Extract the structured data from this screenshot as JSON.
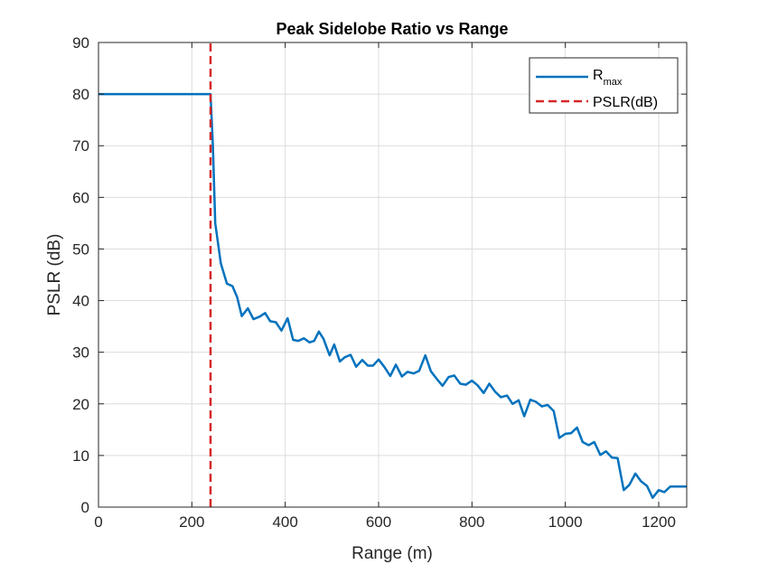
{
  "chart_data": {
    "type": "line",
    "title": "Peak Sidelobe Ratio vs Range",
    "xlabel": "Range (m)",
    "ylabel": "PSLR (dB)",
    "xlim": [
      0,
      1260
    ],
    "ylim": [
      0,
      90
    ],
    "xticks": [
      0,
      200,
      400,
      600,
      800,
      1000,
      1200
    ],
    "yticks": [
      0,
      10,
      20,
      30,
      40,
      50,
      60,
      70,
      80,
      90
    ],
    "grid": true,
    "legend_position": "top-right",
    "series": [
      {
        "name": "R",
        "name_subscript": "max",
        "color": "#0072BD",
        "style": "solid",
        "x": [
          0,
          240,
          245,
          250,
          262,
          275,
          287,
          297,
          307,
          320,
          332,
          345,
          357,
          368,
          380,
          392,
          405,
          417,
          428,
          440,
          452,
          462,
          472,
          482,
          495,
          505,
          517,
          527,
          540,
          552,
          565,
          577,
          588,
          600,
          612,
          625,
          637,
          650,
          662,
          675,
          687,
          700,
          712,
          725,
          737,
          750,
          762,
          775,
          787,
          800,
          812,
          825,
          837,
          850,
          862,
          875,
          887,
          900,
          912,
          925,
          937,
          950,
          962,
          975,
          987,
          1000,
          1012,
          1025,
          1037,
          1050,
          1062,
          1075,
          1087,
          1100,
          1112,
          1125,
          1137,
          1150,
          1162,
          1175,
          1187,
          1200,
          1212,
          1225,
          1237,
          1250,
          1260
        ],
        "y": [
          80,
          80,
          70,
          55,
          47.2,
          43.3,
          42.8,
          40.7,
          37.0,
          38.5,
          36.4,
          36.9,
          37.6,
          36.0,
          35.8,
          34.2,
          36.6,
          32.4,
          32.2,
          32.7,
          31.9,
          32.2,
          34.0,
          32.6,
          29.4,
          31.5,
          28.2,
          29.0,
          29.5,
          27.2,
          28.5,
          27.4,
          27.4,
          28.6,
          27.2,
          25.4,
          27.6,
          25.3,
          26.2,
          25.9,
          26.4,
          29.4,
          26.3,
          24.8,
          23.5,
          25.2,
          25.5,
          23.9,
          23.7,
          24.5,
          23.6,
          22.1,
          23.9,
          22.3,
          21.3,
          21.6,
          20.0,
          20.7,
          17.6,
          20.8,
          20.4,
          19.5,
          19.8,
          18.6,
          13.4,
          14.2,
          14.3,
          15.4,
          12.6,
          12.0,
          12.6,
          10.1,
          10.8,
          9.6,
          9.5,
          3.3,
          4.3,
          6.5,
          5.0,
          4.1,
          1.8,
          3.3,
          2.9,
          4.0,
          4.0,
          4.0,
          4.0
        ]
      },
      {
        "name": "PSLR(dB)",
        "color": "#D62728",
        "style": "dashed",
        "x": [
          240,
          240
        ],
        "y": [
          0,
          90
        ]
      }
    ]
  }
}
